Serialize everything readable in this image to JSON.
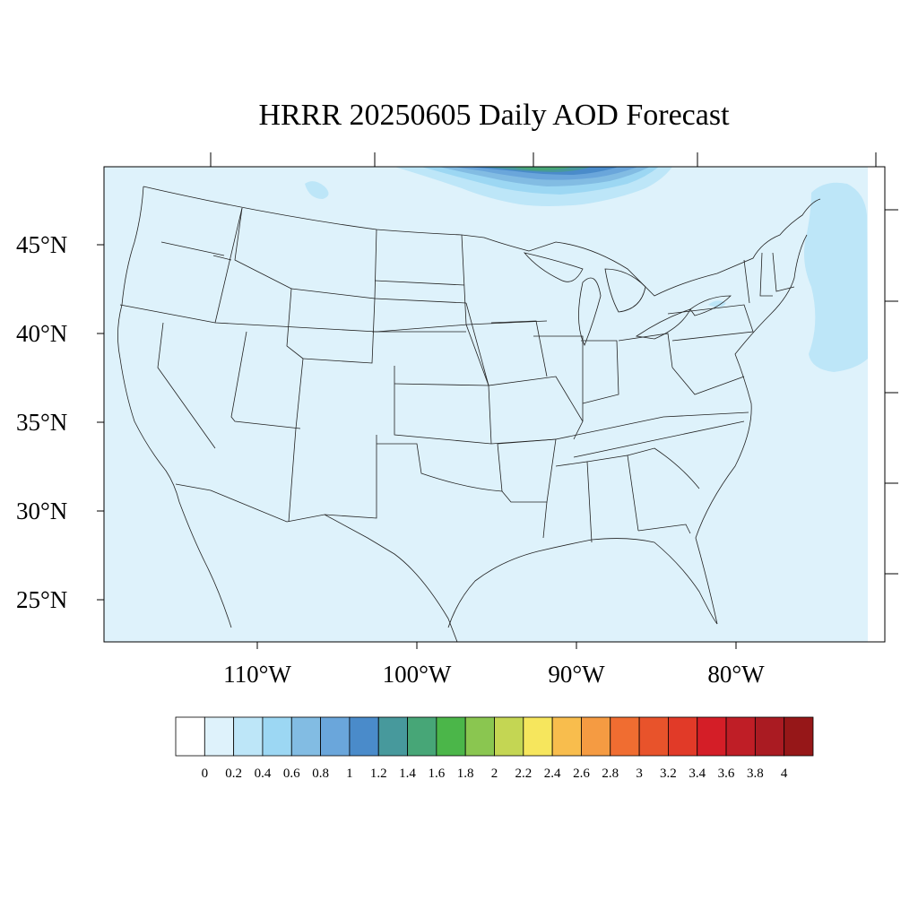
{
  "title": "HRRR 20250605 Daily AOD Forecast",
  "map": {
    "projection": "lambert-conformal",
    "domain": "CONUS",
    "latitude_labels": [
      "45°N",
      "40°N",
      "35°N",
      "30°N",
      "25°N"
    ],
    "longitude_labels": [
      "110°W",
      "100°W",
      "90°W",
      "80°W"
    ],
    "background_aod_range": "0-0.2",
    "smoke_plume_region": "southern Canada north of Great Lakes, peak AOD 1.2-1.6",
    "atlantic_plume_region": "off New England coast, AOD 0.2-0.4"
  },
  "colorbar": {
    "labels": [
      "0",
      "0.2",
      "0.4",
      "0.6",
      "0.8",
      "1",
      "1.2",
      "1.4",
      "1.6",
      "1.8",
      "2",
      "2.2",
      "2.4",
      "2.6",
      "2.8",
      "3",
      "3.2",
      "3.4",
      "3.6",
      "3.8",
      "4"
    ],
    "colors": [
      "#ffffff",
      "#def2fb",
      "#bde6f8",
      "#9cd7f3",
      "#82bce3",
      "#6aa6db",
      "#4a8bca",
      "#47999c",
      "#47a677",
      "#4bb649",
      "#8ac650",
      "#c4d653",
      "#f6e65d",
      "#f8bd4d",
      "#f59b42",
      "#f06d31",
      "#e8532b",
      "#e13a28",
      "#d41e27",
      "#bf1e26",
      "#aa1b22",
      "#961718"
    ]
  }
}
